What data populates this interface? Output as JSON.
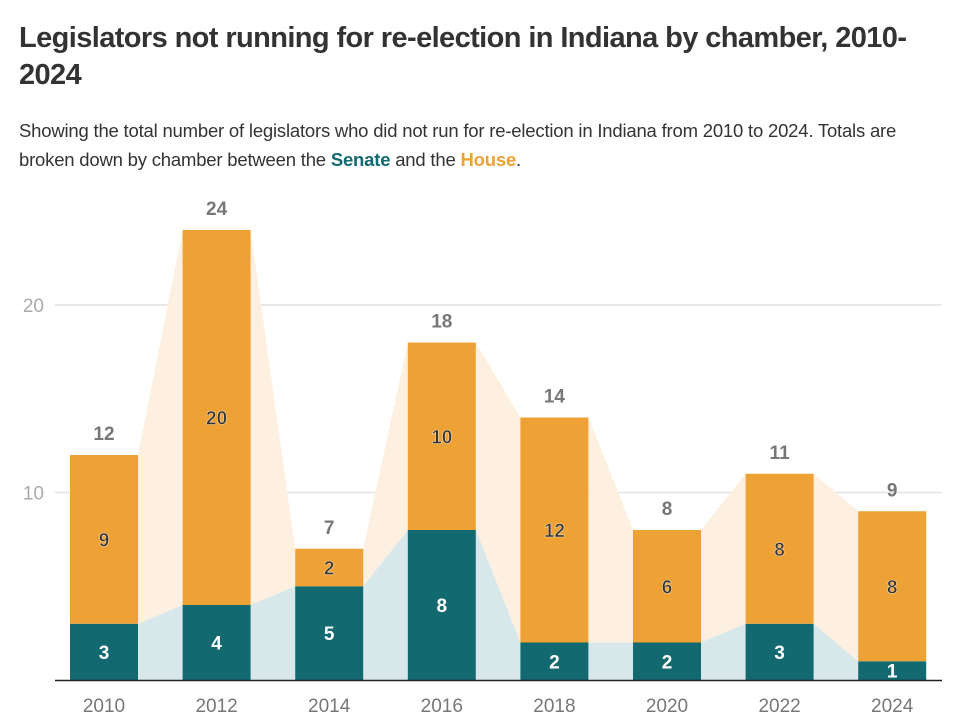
{
  "title": "Legislators not running for re-election in Indiana by chamber, 2010-2024",
  "subtitle": {
    "before": "Showing the total number of legislators who did not run for re-election in Indiana from 2010 to 2024. Totals are broken down by chamber between the ",
    "senate": "Senate",
    "middle": " and the ",
    "house": "House",
    "after": "."
  },
  "chart_data": {
    "type": "bar",
    "stacked": true,
    "categories": [
      "2010",
      "2012",
      "2014",
      "2016",
      "2018",
      "2020",
      "2022",
      "2024"
    ],
    "series": [
      {
        "name": "Senate",
        "color": "#12696f",
        "ribbon_color": "#d8e7ea",
        "values": [
          3,
          4,
          5,
          8,
          2,
          2,
          3,
          1
        ]
      },
      {
        "name": "House",
        "color": "#eea236",
        "ribbon_color": "#fdf0e0",
        "values": [
          9,
          20,
          2,
          10,
          12,
          6,
          8,
          8
        ]
      }
    ],
    "totals": [
      12,
      24,
      7,
      18,
      14,
      8,
      11,
      9
    ],
    "ylim": [
      0,
      25
    ],
    "yticks": [
      10,
      20
    ],
    "grid": true,
    "xlabel": "",
    "ylabel": ""
  }
}
